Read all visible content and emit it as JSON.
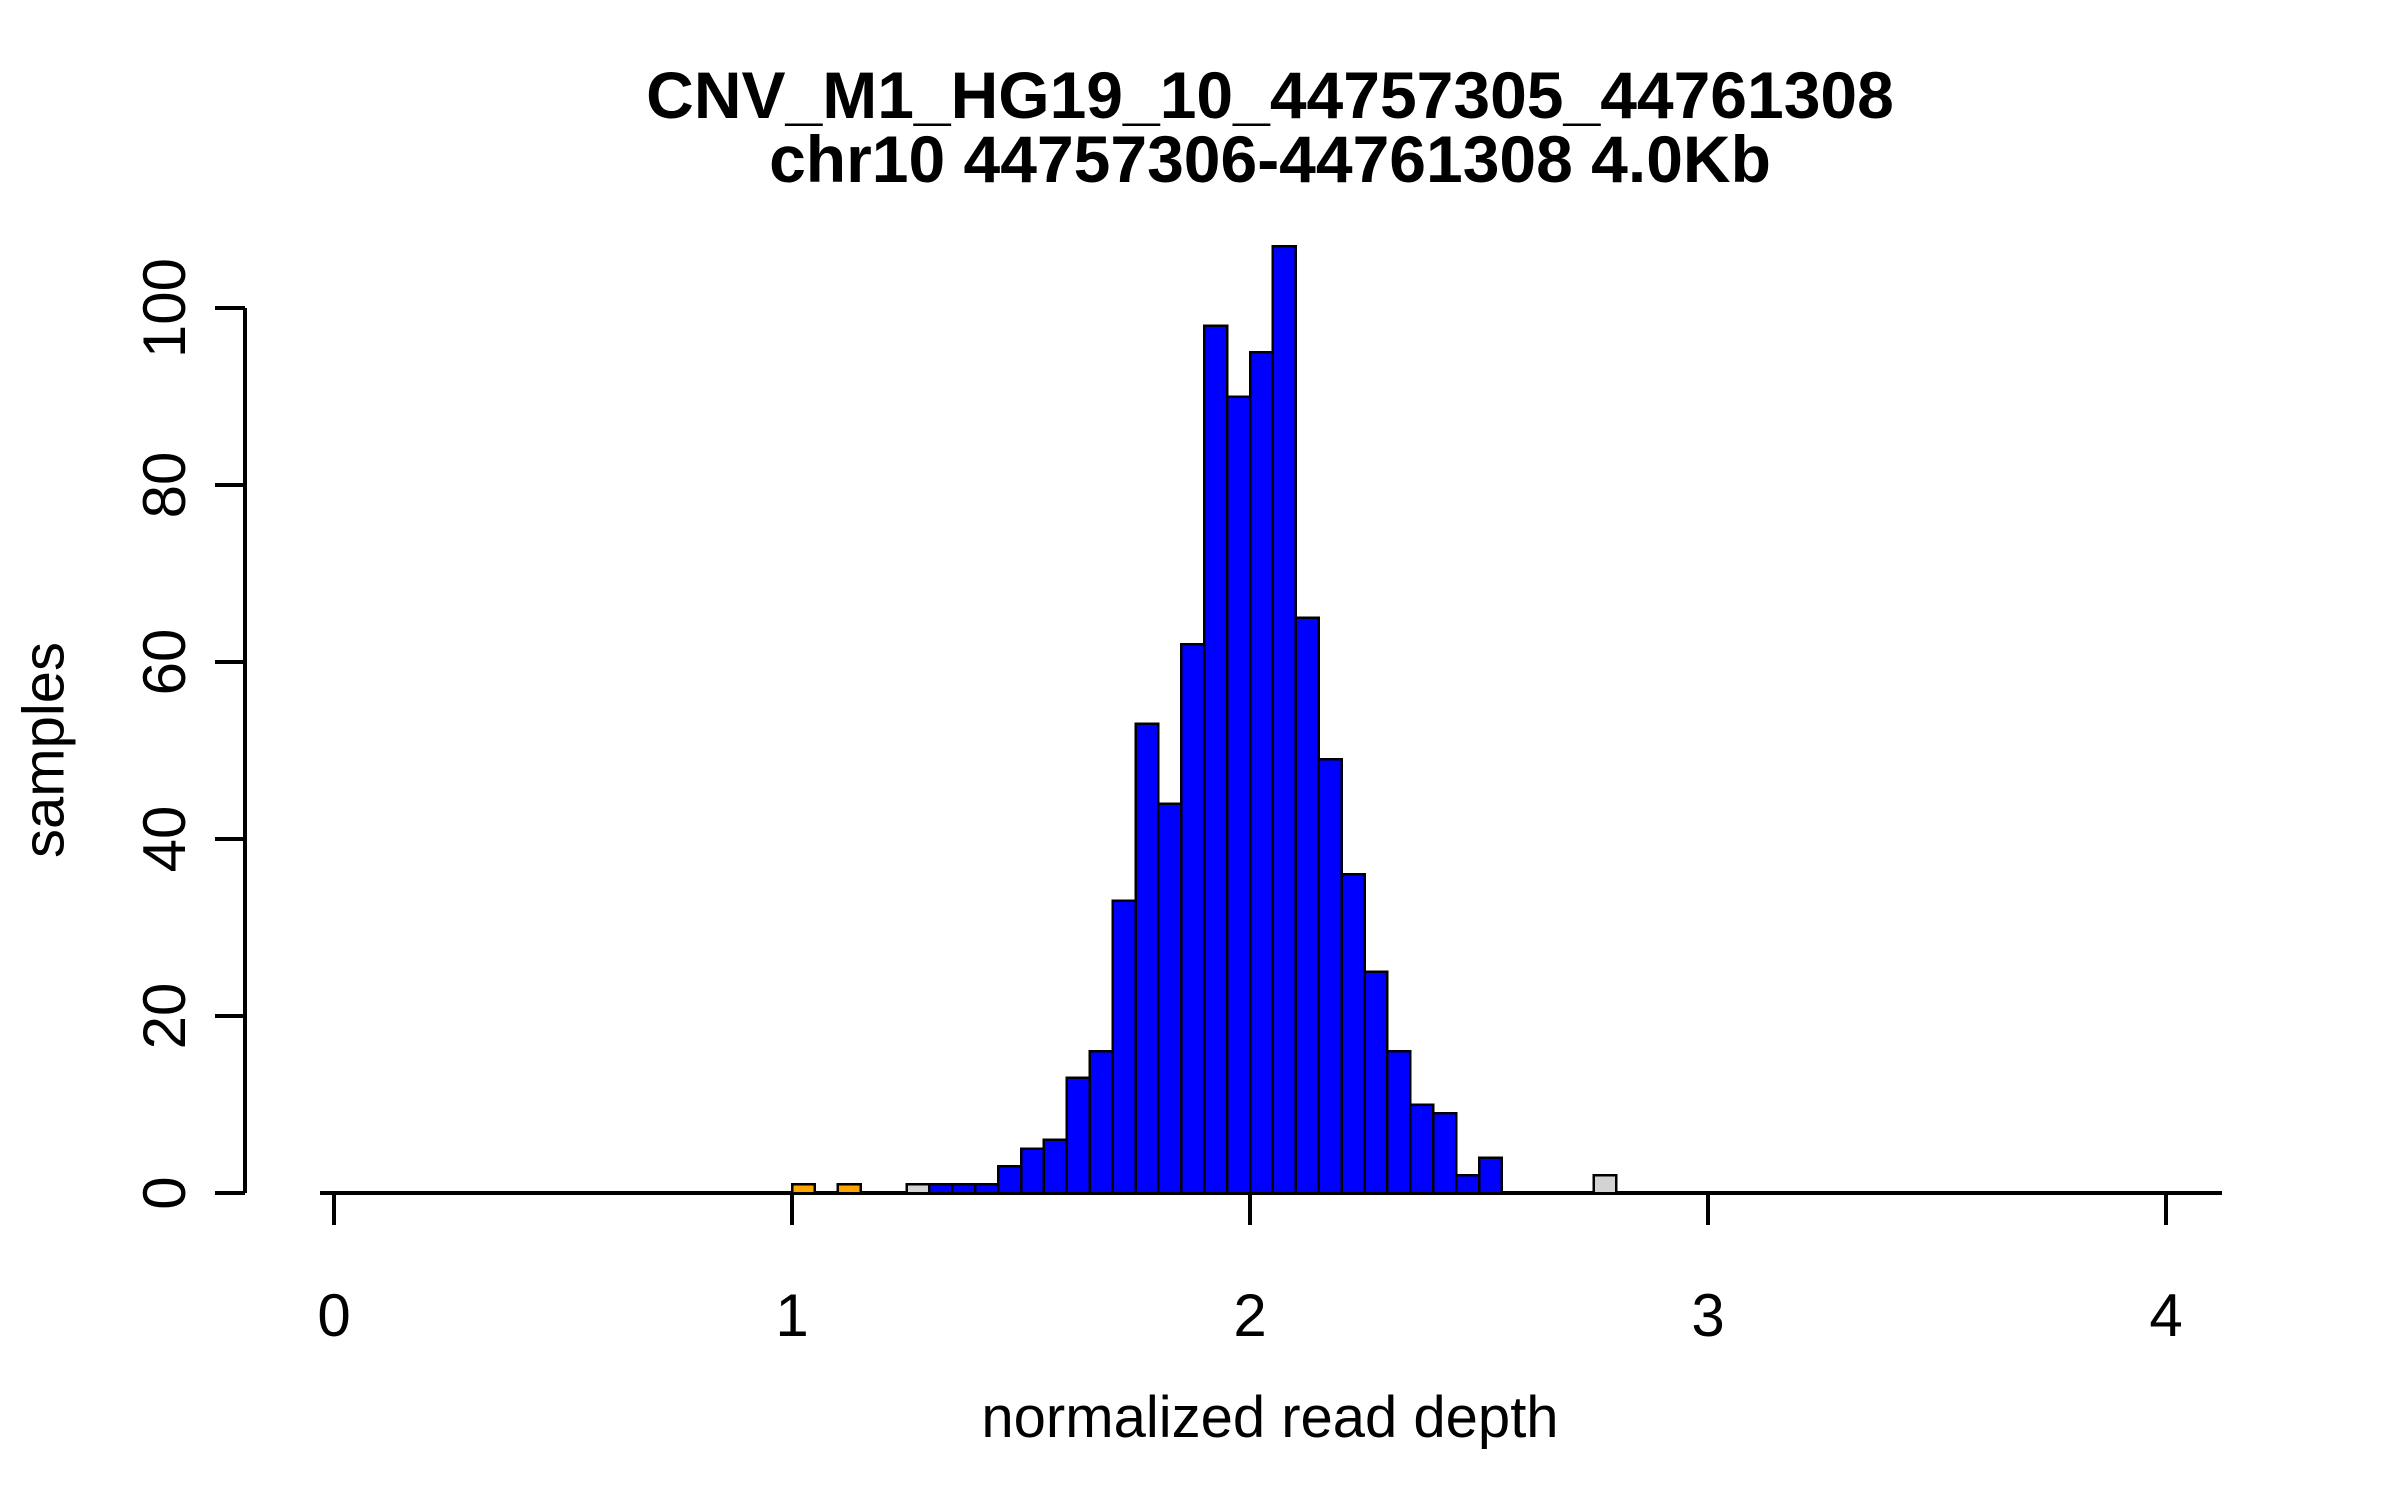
{
  "chart_data": {
    "type": "bar",
    "subtype": "histogram",
    "title_line1": "CNV_M1_HG19_10_44757305_44761308",
    "title_line2": "chr10 44757306-44761308 4.0Kb",
    "xlabel": "normalized read depth",
    "ylabel": "samples",
    "xlim": [
      0,
      4
    ],
    "ylim": [
      0,
      100
    ],
    "x_ticks": [
      0,
      1,
      2,
      3,
      4
    ],
    "y_ticks": [
      0,
      20,
      40,
      60,
      80,
      100
    ],
    "grid": false,
    "legend": false,
    "bin_width": 0.05,
    "colors": {
      "blue": "#0000ff",
      "orange": "#ffa500",
      "gray": "#d3d3d3",
      "axis": "#000000",
      "background": "#ffffff"
    },
    "bars": [
      {
        "x": 1.0,
        "count": 1,
        "color": "orange"
      },
      {
        "x": 1.1,
        "count": 1,
        "color": "orange"
      },
      {
        "x": 1.25,
        "count": 1,
        "color": "gray"
      },
      {
        "x": 1.3,
        "count": 1,
        "color": "blue"
      },
      {
        "x": 1.35,
        "count": 1,
        "color": "blue"
      },
      {
        "x": 1.4,
        "count": 1,
        "color": "blue"
      },
      {
        "x": 1.45,
        "count": 3,
        "color": "blue"
      },
      {
        "x": 1.5,
        "count": 5,
        "color": "blue"
      },
      {
        "x": 1.55,
        "count": 6,
        "color": "blue"
      },
      {
        "x": 1.6,
        "count": 13,
        "color": "blue"
      },
      {
        "x": 1.65,
        "count": 16,
        "color": "blue"
      },
      {
        "x": 1.7,
        "count": 33,
        "color": "blue"
      },
      {
        "x": 1.75,
        "count": 53,
        "color": "blue"
      },
      {
        "x": 1.8,
        "count": 44,
        "color": "blue"
      },
      {
        "x": 1.85,
        "count": 62,
        "color": "blue"
      },
      {
        "x": 1.9,
        "count": 98,
        "color": "blue"
      },
      {
        "x": 1.95,
        "count": 90,
        "color": "blue"
      },
      {
        "x": 2.0,
        "count": 95,
        "color": "blue"
      },
      {
        "x": 2.05,
        "count": 107,
        "color": "blue"
      },
      {
        "x": 2.1,
        "count": 65,
        "color": "blue"
      },
      {
        "x": 2.15,
        "count": 49,
        "color": "blue"
      },
      {
        "x": 2.2,
        "count": 36,
        "color": "blue"
      },
      {
        "x": 2.25,
        "count": 25,
        "color": "blue"
      },
      {
        "x": 2.3,
        "count": 16,
        "color": "blue"
      },
      {
        "x": 2.35,
        "count": 10,
        "color": "blue"
      },
      {
        "x": 2.4,
        "count": 9,
        "color": "blue"
      },
      {
        "x": 2.45,
        "count": 2,
        "color": "blue"
      },
      {
        "x": 2.5,
        "count": 4,
        "color": "blue"
      },
      {
        "x": 2.75,
        "count": 2,
        "color": "gray"
      }
    ]
  }
}
